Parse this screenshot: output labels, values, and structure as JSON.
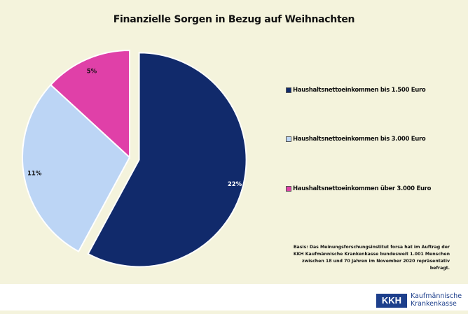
{
  "chart_data": {
    "type": "pie",
    "title": "Finanzielle Sorgen in Bezug auf Weihnachten",
    "categories": [
      "Haushaltsnettoeinkommen bis 1.500 Euro",
      "Haushaltsnettoeinkommen bis 3.000 Euro",
      "Haushaltsnettoeinkommen über 3.000 Euro"
    ],
    "values": [
      22,
      11,
      5
    ],
    "data_labels": [
      "22%",
      "11%",
      "5%"
    ],
    "colors": [
      "#112a6b",
      "#bcd5f5",
      "#e040a8"
    ],
    "exploded": [
      true,
      false,
      false
    ],
    "legend_position": "right"
  },
  "note": "Basis: Das Meinungsforschungsinstitut forsa hat im Auftrag der KKH Kaufmännische Krankenkasse bundesweit 1.001 Menschen zwischen 18 und 70 Jahren im November 2020 repräsentativ befragt.",
  "logo": {
    "mark": "KKH",
    "line1": "Kaufmännische",
    "line2": "Krankenkasse"
  }
}
